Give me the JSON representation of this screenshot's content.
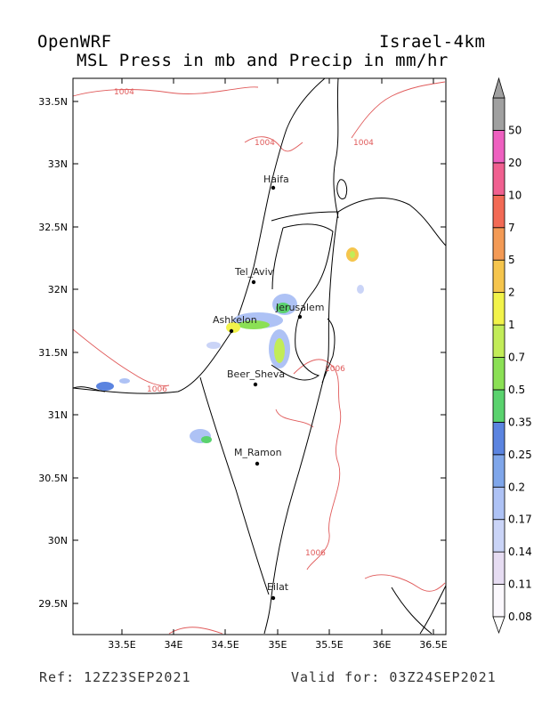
{
  "header": {
    "model": "OpenWRF",
    "domain": "Israel-4km",
    "title": "MSL Press in mb and Precip in mm/hr"
  },
  "footer": {
    "ref": "Ref: 12Z23SEP2021",
    "valid": "Valid for: 03Z24SEP2021"
  },
  "map": {
    "lat_labels": [
      "33.5N",
      "33N",
      "32.5N",
      "32N",
      "31.5N",
      "31N",
      "30.5N",
      "30N",
      "29.5N"
    ],
    "lon_labels": [
      "33.5E",
      "34E",
      "34.5E",
      "35E",
      "35.5E",
      "36E",
      "36.5E"
    ],
    "cities": [
      {
        "name": "Haifa"
      },
      {
        "name": "Tel_Aviv"
      },
      {
        "name": "Jerusalem"
      },
      {
        "name": "Ashkelon"
      },
      {
        "name": "Beer_Sheva"
      },
      {
        "name": "M_Ramon"
      },
      {
        "name": "Eilat"
      }
    ],
    "isobar_labels": [
      "1004",
      "1004",
      "1004",
      "1006",
      "1006",
      "1006"
    ],
    "isobar_color": "#e05a5a"
  },
  "legend": {
    "levels": [
      "0.08",
      "0.11",
      "0.14",
      "0.17",
      "0.2",
      "0.25",
      "0.35",
      "0.5",
      "0.7",
      "1",
      "2",
      "5",
      "7",
      "10",
      "20",
      "50"
    ],
    "colors": [
      "#fbf8fd",
      "#e6dcf2",
      "#cad4f7",
      "#aec2f5",
      "#7fa6ea",
      "#5b84e0",
      "#5ad26e",
      "#8be055",
      "#c2ec58",
      "#f2f34a",
      "#f5c54d",
      "#f39a55",
      "#f26a55",
      "#f06090",
      "#ee60c0",
      "#a0a0a0"
    ]
  }
}
